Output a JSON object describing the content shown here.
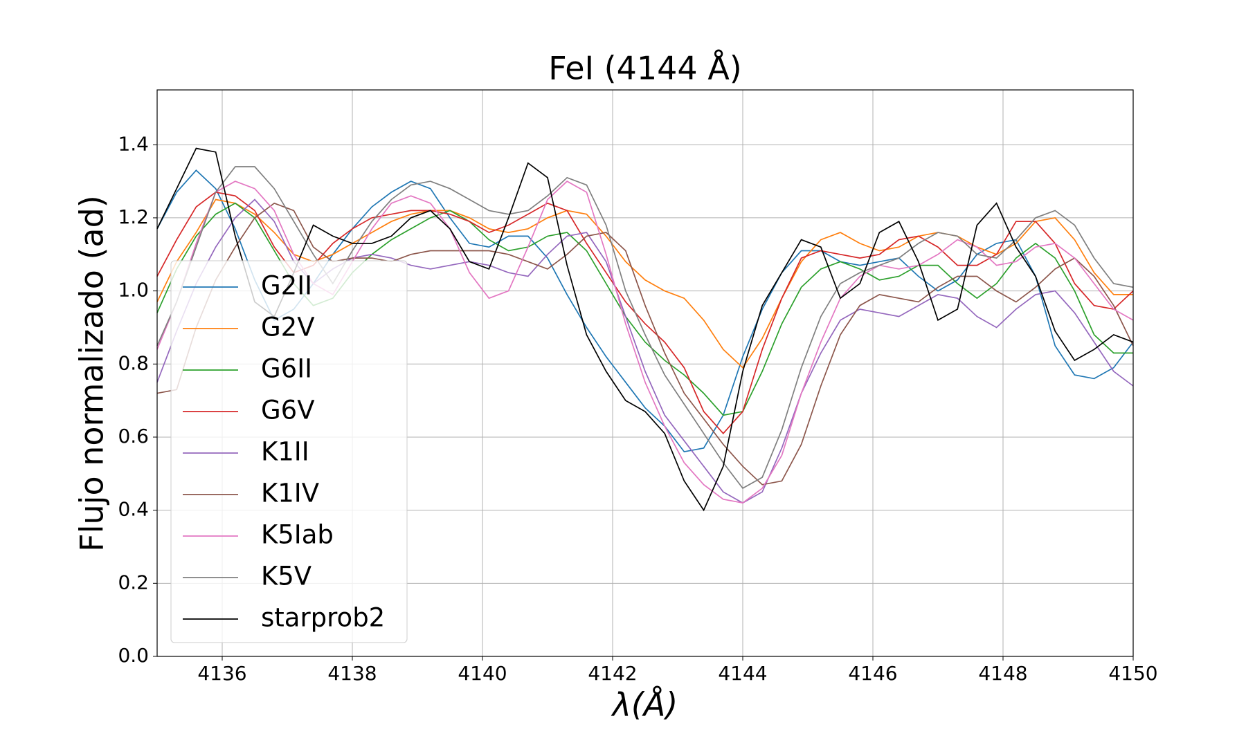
{
  "chart_data": {
    "type": "line",
    "title": "FeI (4144 Å)",
    "xlabel": "λ(Å)",
    "ylabel": "Flujo normalizado (ad)",
    "x": [
      4135.0,
      4135.3,
      4135.6,
      4135.9,
      4136.2,
      4136.5,
      4136.8,
      4137.1,
      4137.4,
      4137.7,
      4138.0,
      4138.3,
      4138.6,
      4138.9,
      4139.2,
      4139.5,
      4139.8,
      4140.1,
      4140.4,
      4140.7,
      4141.0,
      4141.3,
      4141.6,
      4141.9,
      4142.2,
      4142.5,
      4142.8,
      4143.1,
      4143.4,
      4143.7,
      4144.0,
      4144.3,
      4144.6,
      4144.9,
      4145.2,
      4145.5,
      4145.8,
      4146.1,
      4146.4,
      4146.7,
      4147.0,
      4147.3,
      4147.6,
      4147.9,
      4148.2,
      4148.5,
      4148.8,
      4149.1,
      4149.4,
      4149.7,
      4150.0
    ],
    "series": [
      {
        "name": "G2II",
        "color": "#1f77b4",
        "values": [
          1.17,
          1.27,
          1.33,
          1.28,
          1.17,
          1.03,
          0.92,
          0.95,
          1.02,
          1.1,
          1.17,
          1.23,
          1.27,
          1.3,
          1.28,
          1.2,
          1.13,
          1.12,
          1.15,
          1.15,
          1.09,
          0.99,
          0.9,
          0.82,
          0.75,
          0.68,
          0.63,
          0.56,
          0.57,
          0.66,
          0.82,
          0.95,
          1.05,
          1.11,
          1.11,
          1.08,
          1.07,
          1.08,
          1.09,
          1.04,
          1.0,
          1.03,
          1.1,
          1.13,
          1.14,
          1.04,
          0.85,
          0.77,
          0.76,
          0.79,
          0.86
        ]
      },
      {
        "name": "G2V",
        "color": "#ff7f0e",
        "values": [
          0.97,
          1.08,
          1.16,
          1.25,
          1.24,
          1.21,
          1.16,
          1.1,
          1.08,
          1.1,
          1.13,
          1.16,
          1.19,
          1.21,
          1.22,
          1.22,
          1.2,
          1.17,
          1.16,
          1.17,
          1.2,
          1.22,
          1.21,
          1.15,
          1.08,
          1.03,
          1.0,
          0.98,
          0.92,
          0.84,
          0.79,
          0.87,
          0.98,
          1.08,
          1.14,
          1.16,
          1.13,
          1.11,
          1.12,
          1.15,
          1.16,
          1.15,
          1.12,
          1.1,
          1.13,
          1.19,
          1.2,
          1.14,
          1.05,
          0.99,
          0.99
        ]
      },
      {
        "name": "G6II",
        "color": "#2ca02c",
        "values": [
          0.94,
          1.06,
          1.15,
          1.21,
          1.24,
          1.2,
          1.11,
          1.02,
          0.96,
          0.98,
          1.05,
          1.1,
          1.14,
          1.17,
          1.2,
          1.22,
          1.19,
          1.14,
          1.11,
          1.12,
          1.15,
          1.16,
          1.11,
          1.02,
          0.93,
          0.86,
          0.81,
          0.77,
          0.72,
          0.66,
          0.67,
          0.78,
          0.91,
          1.01,
          1.06,
          1.08,
          1.06,
          1.03,
          1.04,
          1.07,
          1.07,
          1.02,
          0.98,
          1.02,
          1.09,
          1.13,
          1.09,
          1.0,
          0.88,
          0.83,
          0.83
        ]
      },
      {
        "name": "G6V",
        "color": "#d62728",
        "values": [
          1.04,
          1.14,
          1.23,
          1.27,
          1.26,
          1.22,
          1.12,
          1.05,
          1.07,
          1.13,
          1.17,
          1.2,
          1.21,
          1.22,
          1.22,
          1.21,
          1.19,
          1.16,
          1.18,
          1.21,
          1.24,
          1.22,
          1.13,
          1.05,
          0.97,
          0.91,
          0.86,
          0.79,
          0.67,
          0.61,
          0.67,
          0.84,
          0.98,
          1.09,
          1.11,
          1.1,
          1.09,
          1.1,
          1.14,
          1.15,
          1.12,
          1.07,
          1.07,
          1.1,
          1.19,
          1.19,
          1.13,
          1.02,
          0.96,
          0.95,
          1.0
        ]
      },
      {
        "name": "K1II",
        "color": "#9467bd",
        "values": [
          0.75,
          0.89,
          1.02,
          1.12,
          1.2,
          1.25,
          1.19,
          1.08,
          1.02,
          1.06,
          1.09,
          1.1,
          1.09,
          1.07,
          1.06,
          1.07,
          1.08,
          1.07,
          1.05,
          1.04,
          1.1,
          1.15,
          1.16,
          1.08,
          0.93,
          0.78,
          0.66,
          0.59,
          0.52,
          0.45,
          0.42,
          0.45,
          0.57,
          0.72,
          0.83,
          0.92,
          0.95,
          0.94,
          0.93,
          0.96,
          0.99,
          0.98,
          0.93,
          0.9,
          0.95,
          0.99,
          1.0,
          0.94,
          0.86,
          0.78,
          0.74
        ]
      },
      {
        "name": "K1IV",
        "color": "#8c564b",
        "values": [
          0.72,
          0.73,
          0.9,
          1.03,
          1.12,
          1.2,
          1.24,
          1.22,
          1.12,
          1.08,
          1.09,
          1.09,
          1.08,
          1.1,
          1.11,
          1.11,
          1.11,
          1.11,
          1.1,
          1.08,
          1.06,
          1.1,
          1.15,
          1.16,
          1.11,
          0.96,
          0.83,
          0.72,
          0.65,
          0.58,
          0.52,
          0.47,
          0.48,
          0.58,
          0.74,
          0.88,
          0.96,
          0.99,
          0.98,
          0.97,
          1.01,
          1.04,
          1.04,
          1.0,
          0.97,
          1.01,
          1.06,
          1.09,
          1.04,
          0.96,
          0.85
        ]
      },
      {
        "name": "K5Iab",
        "color": "#e377c2",
        "values": [
          0.84,
          0.97,
          1.13,
          1.27,
          1.3,
          1.28,
          1.22,
          1.1,
          1.02,
          0.99,
          1.08,
          1.17,
          1.24,
          1.26,
          1.24,
          1.17,
          1.05,
          0.98,
          1.0,
          1.12,
          1.25,
          1.3,
          1.27,
          1.1,
          0.91,
          0.75,
          0.63,
          0.53,
          0.47,
          0.43,
          0.42,
          0.46,
          0.55,
          0.72,
          0.86,
          0.98,
          1.04,
          1.07,
          1.06,
          1.07,
          1.1,
          1.14,
          1.12,
          1.07,
          1.08,
          1.12,
          1.13,
          1.09,
          1.02,
          0.95,
          0.92
        ]
      },
      {
        "name": "K5V",
        "color": "#7f7f7f",
        "values": [
          0.85,
          0.97,
          1.12,
          1.27,
          1.34,
          1.34,
          1.28,
          1.19,
          1.1,
          1.02,
          1.11,
          1.19,
          1.25,
          1.29,
          1.3,
          1.28,
          1.25,
          1.22,
          1.21,
          1.22,
          1.26,
          1.31,
          1.29,
          1.18,
          1.0,
          0.88,
          0.77,
          0.69,
          0.61,
          0.53,
          0.46,
          0.49,
          0.62,
          0.79,
          0.93,
          1.02,
          1.05,
          1.07,
          1.09,
          1.13,
          1.16,
          1.15,
          1.1,
          1.09,
          1.14,
          1.2,
          1.22,
          1.18,
          1.09,
          1.02,
          1.01
        ]
      },
      {
        "name": "starprob2",
        "color": "#000000",
        "values": [
          1.17,
          1.28,
          1.39,
          1.38,
          1.15,
          0.97,
          0.93,
          1.05,
          1.18,
          1.15,
          1.13,
          1.13,
          1.15,
          1.2,
          1.22,
          1.17,
          1.08,
          1.06,
          1.2,
          1.35,
          1.31,
          1.07,
          0.88,
          0.78,
          0.7,
          0.67,
          0.61,
          0.48,
          0.4,
          0.52,
          0.78,
          0.96,
          1.05,
          1.14,
          1.12,
          0.98,
          1.02,
          1.16,
          1.19,
          1.08,
          0.92,
          0.95,
          1.18,
          1.24,
          1.12,
          1.04,
          0.89,
          0.81,
          0.84,
          0.88,
          0.86
        ]
      }
    ],
    "xlim": [
      4135,
      4150
    ],
    "xticks": [
      4136,
      4138,
      4140,
      4142,
      4144,
      4146,
      4148,
      4150
    ],
    "ylim": [
      0,
      1.55
    ],
    "yticks": [
      {
        "value": 0,
        "label": "0.0"
      },
      0.2,
      0.4,
      0.6,
      0.8,
      {
        "value": 1,
        "label": "1.0"
      },
      1.2,
      1.4
    ],
    "grid": true,
    "legend": "lower left"
  }
}
